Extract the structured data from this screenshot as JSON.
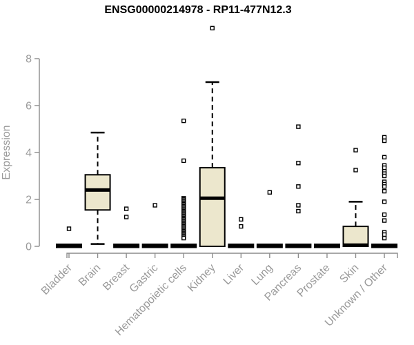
{
  "chart_data": {
    "type": "boxplot",
    "title": "ENSG00000214978 - RP11-477N12.3",
    "xlabel": "",
    "ylabel": "Expression",
    "ylim": [
      0,
      8
    ],
    "yticks": [
      0,
      2,
      4,
      6,
      8
    ],
    "x_label_rotation_deg": 45,
    "grid": "off",
    "categories": [
      "Bladder",
      "Brain",
      "Breast",
      "Gastric",
      "Hematopoietic cells",
      "Kidney",
      "Liver",
      "Lung",
      "Pancreas",
      "Prostate",
      "Skin",
      "Unknown / Other"
    ],
    "boxes": [
      {
        "category": "Bladder",
        "q1": 0,
        "median": 0,
        "q3": 0,
        "whisker_low": null,
        "whisker_high": null,
        "outliers": [
          0.75
        ]
      },
      {
        "category": "Brain",
        "q1": 1.55,
        "median": 2.4,
        "q3": 3.05,
        "whisker_low": 0.1,
        "whisker_high": 4.85,
        "outliers": []
      },
      {
        "category": "Breast",
        "q1": 0,
        "median": 0,
        "q3": 0,
        "whisker_low": null,
        "whisker_high": null,
        "outliers": [
          1.6,
          1.25
        ]
      },
      {
        "category": "Gastric",
        "q1": 0,
        "median": 0,
        "q3": 0,
        "whisker_low": null,
        "whisker_high": null,
        "outliers": [
          1.75
        ]
      },
      {
        "category": "Hematopoietic cells",
        "q1": 0,
        "median": 0,
        "q3": 0,
        "whisker_low": null,
        "whisker_high": null,
        "outliers": [
          5.35,
          3.65,
          2.05,
          2,
          1.95,
          1.9,
          1.85,
          1.8,
          1.75,
          1.7,
          1.65,
          1.6,
          1.55,
          1.5,
          1.45,
          1.4,
          1.35,
          1.3,
          1.25,
          1.2,
          1.15,
          1.1,
          1.05,
          1,
          0.95,
          0.9,
          0.85,
          0.8,
          0.75,
          0.7,
          0.65,
          0.6,
          0.55,
          0.5,
          0.45,
          0.4,
          0.35
        ]
      },
      {
        "category": "Kidney",
        "q1": 0,
        "median": 2.05,
        "q3": 3.35,
        "whisker_low": null,
        "whisker_high": 7.0,
        "outliers": [
          9.3
        ]
      },
      {
        "category": "Liver",
        "q1": 0,
        "median": 0,
        "q3": 0,
        "whisker_low": null,
        "whisker_high": null,
        "outliers": [
          1.15,
          0.85
        ]
      },
      {
        "category": "Lung",
        "q1": 0,
        "median": 0,
        "q3": 0,
        "whisker_low": null,
        "whisker_high": null,
        "outliers": [
          2.3
        ]
      },
      {
        "category": "Pancreas",
        "q1": 0,
        "median": 0,
        "q3": 0,
        "whisker_low": null,
        "whisker_high": null,
        "outliers": [
          5.1,
          3.55,
          2.55,
          1.75,
          1.5
        ]
      },
      {
        "category": "Prostate",
        "q1": 0,
        "median": 0,
        "q3": 0,
        "whisker_low": null,
        "whisker_high": null,
        "outliers": []
      },
      {
        "category": "Skin",
        "q1": 0,
        "median": 0.05,
        "q3": 0.85,
        "whisker_low": null,
        "whisker_high": 1.9,
        "outliers": [
          4.1,
          3.25
        ]
      },
      {
        "category": "Unknown / Other",
        "q1": 0,
        "median": 0,
        "q3": 0,
        "whisker_low": null,
        "whisker_high": null,
        "outliers": [
          4.65,
          4.5,
          3.8,
          3.45,
          3.35,
          3.2,
          3.1,
          3,
          2.75,
          2.65,
          2.55,
          2.35,
          1.9,
          1.35,
          1.1,
          0.6,
          0.5,
          0.35
        ]
      }
    ],
    "colors": {
      "box_fill": "#ECE7CD",
      "box_stroke": "#000000",
      "median": "#000000",
      "whisker": "#000000",
      "outlier_stroke": "#000000",
      "outlier_fill": "#ffffff",
      "axis_line": "#8c8c8c",
      "tick_text": "#999999",
      "title_text": "#000000",
      "background": "#ffffff"
    }
  }
}
